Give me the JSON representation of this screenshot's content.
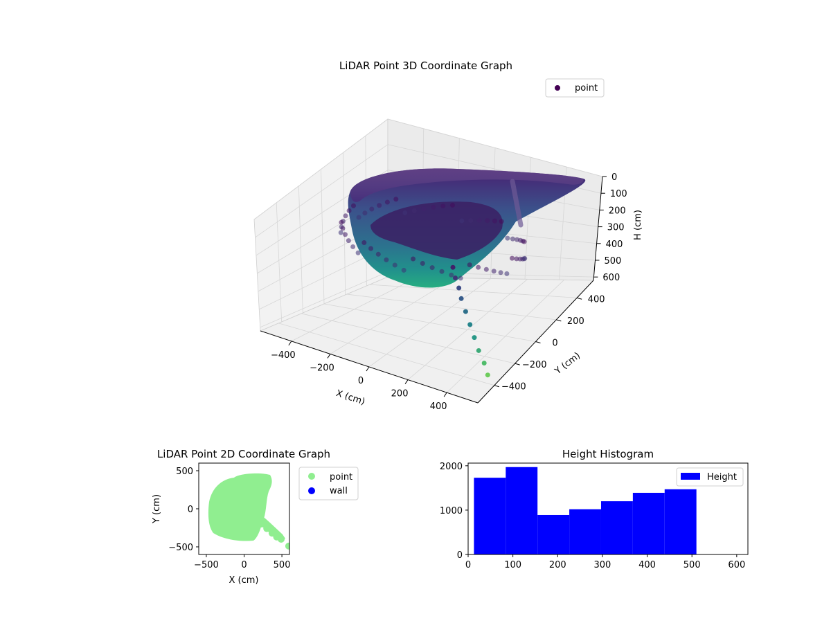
{
  "chart_data": [
    {
      "type": "scatter",
      "projection": "3d",
      "title": "LiDAR Point 3D Coordinate Graph",
      "xlabel": "X (cm)",
      "ylabel": "Y (cm)",
      "zlabel": "H (cm)",
      "xlim": [
        -560,
        560
      ],
      "ylim": [
        -560,
        560
      ],
      "zlim": [
        0,
        620
      ],
      "z_axis_inverted": true,
      "x_ticks": [
        "−400",
        "−200",
        "0",
        "200",
        "400"
      ],
      "x_tick_values": [
        -400,
        -200,
        0,
        200,
        400
      ],
      "y_ticks": [
        "−400",
        "−200",
        "0",
        "200",
        "400"
      ],
      "y_tick_values": [
        -400,
        -200,
        0,
        200,
        400
      ],
      "z_ticks": [
        "0",
        "100",
        "200",
        "300",
        "400",
        "500",
        "600"
      ],
      "z_tick_values": [
        0,
        100,
        200,
        300,
        400,
        500,
        600
      ],
      "colormap": "viridis",
      "legend": [
        "point"
      ],
      "legend_position": "top-right",
      "grid": true,
      "description_of_data": "Dense wall point cloud around a roughly circular room of radius about 450 cm, heights 0 to about 500 cm, plus a tail of points toward the lower right",
      "tail_points": [
        {
          "x": 250,
          "y": -250,
          "h": 60
        },
        {
          "x": 280,
          "y": -280,
          "h": 100
        },
        {
          "x": 310,
          "y": -300,
          "h": 140
        },
        {
          "x": 340,
          "y": -330,
          "h": 180
        },
        {
          "x": 380,
          "y": -360,
          "h": 230
        },
        {
          "x": 420,
          "y": -390,
          "h": 280
        },
        {
          "x": 460,
          "y": -420,
          "h": 330
        },
        {
          "x": 500,
          "y": -450,
          "h": 380
        },
        {
          "x": 540,
          "y": -470,
          "h": 430
        },
        {
          "x": 570,
          "y": -490,
          "h": 480
        }
      ]
    },
    {
      "type": "scatter",
      "title": "LiDAR Point 2D Coordinate Graph",
      "xlabel": "X (cm)",
      "ylabel": "Y (cm)",
      "xlim": [
        -600,
        600
      ],
      "ylim": [
        -600,
        600
      ],
      "x_ticks": [
        "−500",
        "0",
        "500"
      ],
      "x_tick_values": [
        -500,
        0,
        500
      ],
      "y_ticks": [
        "500",
        "0",
        "−500"
      ],
      "y_tick_values": [
        500,
        0,
        -500
      ],
      "series": [
        {
          "name": "point",
          "color": "#90ee90"
        },
        {
          "name": "wall",
          "color": "#0000ff"
        }
      ],
      "legend_position": "outside-right",
      "tail_points": [
        {
          "x": 230,
          "y": -200
        },
        {
          "x": 300,
          "y": -260
        },
        {
          "x": 370,
          "y": -320
        },
        {
          "x": 430,
          "y": -370
        },
        {
          "x": 490,
          "y": -400
        },
        {
          "x": 590,
          "y": -490
        }
      ]
    },
    {
      "type": "bar",
      "subtype": "histogram",
      "title": "Height Histogram",
      "xlabel": "",
      "ylabel": "",
      "xlim": [
        0,
        625
      ],
      "ylim": [
        0,
        2060
      ],
      "x_ticks": [
        "0",
        "100",
        "200",
        "300",
        "400",
        "500",
        "600"
      ],
      "x_tick_values": [
        0,
        100,
        200,
        300,
        400,
        500,
        600
      ],
      "y_ticks": [
        "0",
        "1000",
        "2000"
      ],
      "y_tick_values": [
        0,
        1000,
        2000
      ],
      "bin_edges": [
        13,
        84,
        155,
        226,
        297,
        368,
        439,
        510
      ],
      "values": [
        1730,
        1970,
        890,
        1020,
        1200,
        1390,
        1470
      ],
      "color": "#0000ff",
      "legend": [
        "Height"
      ],
      "legend_position": "top-right"
    }
  ]
}
